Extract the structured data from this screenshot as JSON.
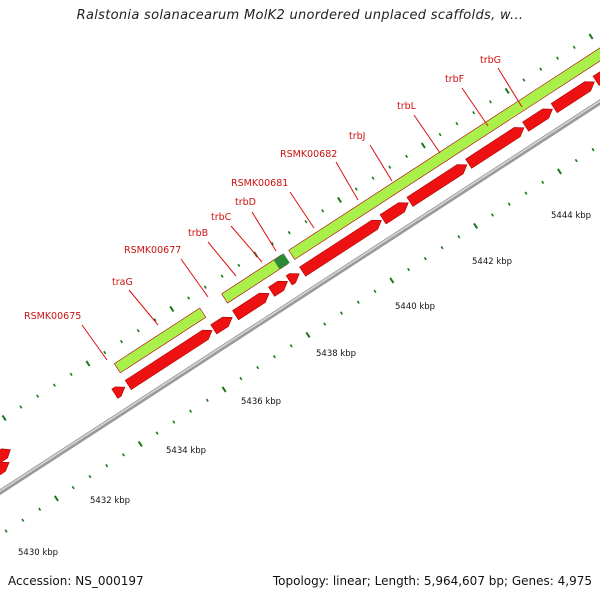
{
  "title": "Ralstonia solanacearum MolK2 unordered unplaced scaffolds, w...",
  "footer": {
    "accession": "Accession: NS_000197",
    "topology": "Topology: linear; Length: 5,964,607 bp; Genes: 4,975"
  },
  "colors": {
    "feature_red": "#ee1111",
    "feature_green": "#aaf04a",
    "highlight": "#2a8a3a",
    "tick": "#1a7a1a",
    "backbone": "#888888",
    "label": "#cc1111"
  },
  "scale_labels": [
    "5430 kbp",
    "5432 kbp",
    "5434 kbp",
    "5436 kbp",
    "5438 kbp",
    "5440 kbp",
    "5442 kbp",
    "5444 kbp"
  ],
  "gene_labels": [
    "RSMK00675",
    "traG",
    "RSMK00677",
    "trbB",
    "trbC",
    "trbD",
    "RSMK00681",
    "RSMK00682",
    "trbJ",
    "trbL",
    "trbF",
    "trbG"
  ]
}
